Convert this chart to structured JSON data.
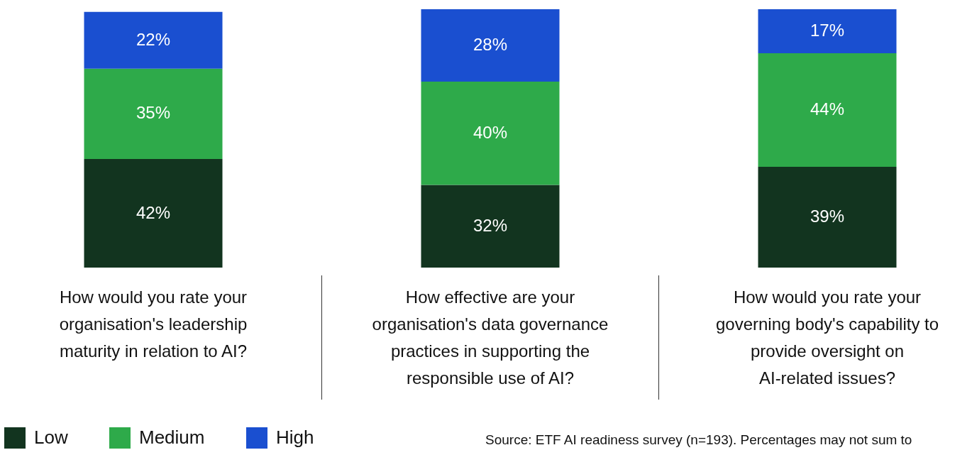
{
  "chart_data": {
    "type": "bar",
    "stacked": true,
    "legend": "bottom left",
    "categories": [
      "How would you rate your organisation's leadership maturity in relation to AI?",
      "How effective are your organisation's data governance practices in supporting the responsible use of AI?",
      "How would you rate your governing body's capability to provide oversight on AI-related issues?"
    ],
    "series": [
      {
        "name": "Low",
        "color": "#12341f",
        "values": [
          42,
          32,
          39
        ],
        "value_labels": [
          "42%",
          "32%",
          "39%"
        ]
      },
      {
        "name": "Medium",
        "color": "#2eaa4a",
        "values": [
          35,
          40,
          44
        ],
        "value_labels": [
          "35%",
          "40%",
          "44%"
        ]
      },
      {
        "name": "High",
        "color": "#1a4fd0",
        "values": [
          22,
          28,
          17
        ],
        "value_labels": [
          "22%",
          "28%",
          "17%"
        ]
      }
    ],
    "annotations": [
      "Source: ETF AI readiness survey (n=193). Percentages may not sum to"
    ]
  }
}
